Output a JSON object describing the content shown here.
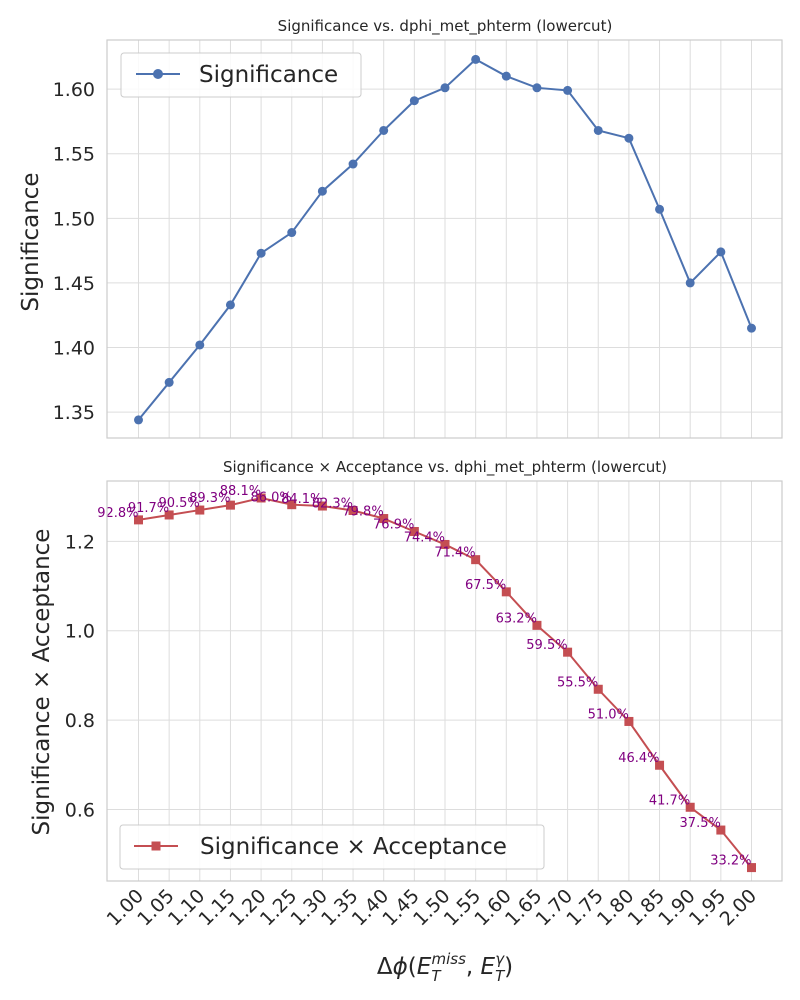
{
  "chart_data": [
    {
      "type": "line",
      "title": "Significance vs. dphi_met_phterm (lowercut)",
      "xlabel": "",
      "ylabel": "Significance",
      "x": [
        1.0,
        1.05,
        1.1,
        1.15,
        1.2,
        1.25,
        1.3,
        1.35,
        1.4,
        1.45,
        1.5,
        1.55,
        1.6,
        1.65,
        1.7,
        1.75,
        1.8,
        1.85,
        1.9,
        1.95,
        2.0
      ],
      "ylim": [
        1.33,
        1.638
      ],
      "yticks": [
        "1.35",
        "1.40",
        "1.45",
        "1.50",
        "1.55",
        "1.60"
      ],
      "grid": true,
      "legend_position": "upper-left",
      "series": [
        {
          "name": "Significance",
          "color": "#4c72b0",
          "marker": "circle",
          "values": [
            1.344,
            1.373,
            1.402,
            1.433,
            1.473,
            1.489,
            1.521,
            1.542,
            1.568,
            1.591,
            1.601,
            1.623,
            1.61,
            1.601,
            1.599,
            1.568,
            1.562,
            1.507,
            1.45,
            1.474,
            1.415
          ]
        }
      ]
    },
    {
      "type": "line",
      "title": "Significance × Acceptance vs. dphi_met_phterm (lowercut)",
      "xlabel": "Δφ(E_T^miss, E_T^γ)",
      "ylabel": "Significance × Acceptance",
      "x": [
        1.0,
        1.05,
        1.1,
        1.15,
        1.2,
        1.25,
        1.3,
        1.35,
        1.4,
        1.45,
        1.5,
        1.55,
        1.6,
        1.65,
        1.7,
        1.75,
        1.8,
        1.85,
        1.9,
        1.95,
        2.0
      ],
      "xticks": [
        "1.00",
        "1.05",
        "1.10",
        "1.15",
        "1.20",
        "1.25",
        "1.30",
        "1.35",
        "1.40",
        "1.45",
        "1.50",
        "1.55",
        "1.60",
        "1.65",
        "1.70",
        "1.75",
        "1.80",
        "1.85",
        "1.90",
        "1.95",
        "2.00"
      ],
      "ylim": [
        0.44,
        1.335
      ],
      "yticks": [
        "0.6",
        "0.8",
        "1.0",
        "1.2"
      ],
      "grid": true,
      "legend_position": "lower-left",
      "series": [
        {
          "name": "Significance × Acceptance",
          "color": "#c44e52",
          "marker": "square",
          "values": [
            1.248,
            1.259,
            1.27,
            1.281,
            1.297,
            1.282,
            1.279,
            1.269,
            1.251,
            1.222,
            1.193,
            1.159,
            1.087,
            1.012,
            0.952,
            0.869,
            0.797,
            0.699,
            0.605,
            0.554,
            0.47
          ]
        }
      ],
      "annotations": [
        "92.8%",
        "91.7%",
        "90.5%",
        "89.3%",
        "88.1%",
        "86.0%",
        "84.1%",
        "82.3%",
        "79.8%",
        "76.9%",
        "74.4%",
        "71.4%",
        "67.5%",
        "63.2%",
        "59.5%",
        "55.5%",
        "51.0%",
        "46.4%",
        "41.7%",
        "37.5%",
        "33.2%"
      ]
    }
  ]
}
